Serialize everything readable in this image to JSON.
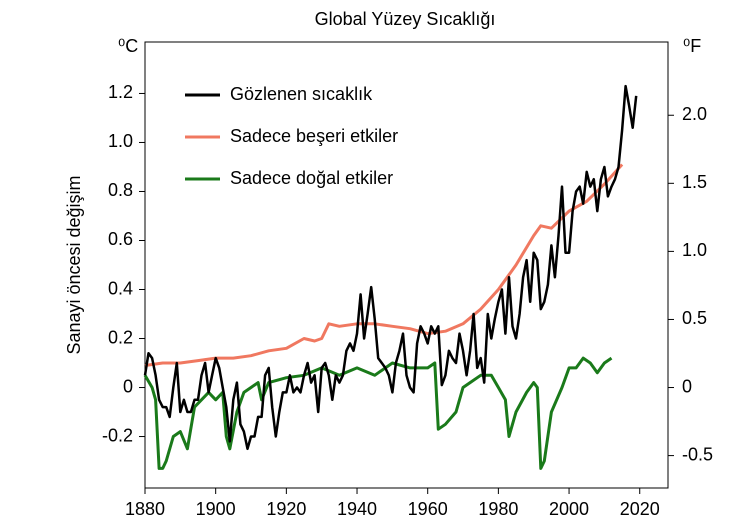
{
  "chart_data": {
    "type": "line",
    "title": "Global Yüzey Sıcaklığı",
    "ylabel": "Sanayi öncesi değişim",
    "y_unit": "⁰C",
    "y2_unit": "⁰F",
    "xlim": [
      1880,
      2028
    ],
    "xticks": [
      1880,
      1900,
      1920,
      1940,
      1960,
      1980,
      2000,
      2020
    ],
    "ylim": [
      -0.41,
      1.41
    ],
    "yticks": [
      -0.2,
      0,
      0.2,
      0.4,
      0.6,
      0.8,
      {
        "value": 1.0,
        "label": "1.0"
      },
      1.2
    ],
    "y2lim": [
      -0.738,
      2.538
    ],
    "y2ticks": [
      -0.5,
      0,
      0.5,
      {
        "value": 1.0,
        "label": "1.0"
      },
      1.5,
      {
        "value": 2.0,
        "label": "2.0"
      }
    ],
    "series": [
      {
        "name": "Gözlenen sıcaklık",
        "color": "#000000",
        "label_color": "#000000",
        "x": [
          1880,
          1881,
          1882,
          1883,
          1884,
          1885,
          1886,
          1887,
          1888,
          1889,
          1890,
          1891,
          1892,
          1893,
          1894,
          1895,
          1896,
          1897,
          1898,
          1899,
          1900,
          1901,
          1902,
          1903,
          1904,
          1905,
          1906,
          1907,
          1908,
          1909,
          1910,
          1911,
          1912,
          1913,
          1914,
          1915,
          1916,
          1917,
          1918,
          1919,
          1920,
          1921,
          1922,
          1923,
          1924,
          1925,
          1926,
          1927,
          1928,
          1929,
          1930,
          1931,
          1932,
          1933,
          1934,
          1935,
          1936,
          1937,
          1938,
          1939,
          1940,
          1941,
          1942,
          1943,
          1944,
          1945,
          1946,
          1947,
          1948,
          1949,
          1950,
          1951,
          1952,
          1953,
          1954,
          1955,
          1956,
          1957,
          1958,
          1959,
          1960,
          1961,
          1962,
          1963,
          1964,
          1965,
          1966,
          1967,
          1968,
          1969,
          1970,
          1971,
          1972,
          1973,
          1974,
          1975,
          1976,
          1977,
          1978,
          1979,
          1980,
          1981,
          1982,
          1983,
          1984,
          1985,
          1986,
          1987,
          1988,
          1989,
          1990,
          1991,
          1992,
          1993,
          1994,
          1995,
          1996,
          1997,
          1998,
          1999,
          2000,
          2001,
          2002,
          2003,
          2004,
          2005,
          2006,
          2007,
          2008,
          2009,
          2010,
          2011,
          2012,
          2013,
          2014,
          2015,
          2016,
          2017,
          2018,
          2019
        ],
        "values": [
          0.05,
          0.14,
          0.12,
          0.05,
          -0.05,
          -0.08,
          -0.08,
          -0.12,
          0.0,
          0.1,
          -0.1,
          -0.05,
          -0.1,
          -0.1,
          -0.05,
          -0.05,
          0.05,
          0.1,
          -0.02,
          0.05,
          0.12,
          0.08,
          0.0,
          -0.08,
          -0.22,
          -0.05,
          0.02,
          -0.15,
          -0.18,
          -0.25,
          -0.2,
          -0.2,
          -0.12,
          -0.12,
          0.05,
          0.08,
          -0.08,
          -0.2,
          -0.1,
          -0.02,
          -0.02,
          0.05,
          -0.02,
          0.0,
          -0.02,
          0.05,
          0.1,
          0.02,
          0.05,
          -0.1,
          0.08,
          0.1,
          0.05,
          -0.05,
          0.05,
          0.02,
          0.05,
          0.15,
          0.18,
          0.15,
          0.22,
          0.38,
          0.2,
          0.3,
          0.41,
          0.28,
          0.12,
          0.1,
          0.08,
          0.05,
          -0.02,
          0.1,
          0.15,
          0.22,
          0.05,
          0.0,
          -0.02,
          0.18,
          0.25,
          0.22,
          0.18,
          0.25,
          0.22,
          0.25,
          0.01,
          0.05,
          0.15,
          0.12,
          0.1,
          0.22,
          0.15,
          0.05,
          0.15,
          0.3,
          0.08,
          0.12,
          0.02,
          0.3,
          0.2,
          0.28,
          0.35,
          0.4,
          0.22,
          0.45,
          0.25,
          0.2,
          0.3,
          0.45,
          0.52,
          0.35,
          0.55,
          0.52,
          0.32,
          0.35,
          0.42,
          0.58,
          0.45,
          0.62,
          0.82,
          0.55,
          0.55,
          0.72,
          0.8,
          0.82,
          0.75,
          0.88,
          0.82,
          0.85,
          0.72,
          0.85,
          0.9,
          0.78,
          0.82,
          0.85,
          0.9,
          1.05,
          1.23,
          1.15,
          1.06,
          1.19
        ]
      },
      {
        "name": "Sadece beşeri etkiler",
        "color": "#f07860",
        "label_color": "#e0302a",
        "x": [
          1880,
          1885,
          1890,
          1895,
          1900,
          1905,
          1910,
          1915,
          1920,
          1925,
          1928,
          1930,
          1932,
          1935,
          1940,
          1945,
          1950,
          1955,
          1960,
          1965,
          1970,
          1975,
          1980,
          1985,
          1990,
          1992,
          1995,
          2000,
          2005,
          2010,
          2015
        ],
        "values": [
          0.09,
          0.1,
          0.1,
          0.11,
          0.12,
          0.12,
          0.13,
          0.15,
          0.16,
          0.2,
          0.19,
          0.2,
          0.26,
          0.25,
          0.26,
          0.26,
          0.25,
          0.24,
          0.22,
          0.23,
          0.26,
          0.32,
          0.4,
          0.5,
          0.62,
          0.66,
          0.65,
          0.72,
          0.76,
          0.83,
          0.91
        ]
      },
      {
        "name": "Sadece doğal etkiler",
        "color": "#1a7a1a",
        "label_color": "#157070",
        "x": [
          1880,
          1882,
          1883,
          1884,
          1885,
          1886,
          1888,
          1890,
          1892,
          1894,
          1896,
          1898,
          1900,
          1902,
          1903,
          1904,
          1906,
          1908,
          1910,
          1912,
          1913,
          1915,
          1920,
          1925,
          1930,
          1935,
          1940,
          1945,
          1950,
          1955,
          1960,
          1962,
          1963,
          1965,
          1968,
          1970,
          1972,
          1975,
          1978,
          1980,
          1982,
          1983,
          1985,
          1988,
          1990,
          1991,
          1992,
          1993,
          1995,
          1998,
          2000,
          2002,
          2004,
          2006,
          2008,
          2010,
          2012
        ],
        "values": [
          0.05,
          0.0,
          -0.05,
          -0.33,
          -0.33,
          -0.3,
          -0.2,
          -0.18,
          -0.25,
          -0.08,
          -0.05,
          -0.02,
          -0.05,
          -0.02,
          -0.2,
          -0.25,
          -0.1,
          -0.02,
          0.0,
          0.02,
          -0.05,
          0.02,
          0.04,
          0.05,
          0.08,
          0.05,
          0.08,
          0.05,
          0.1,
          0.08,
          0.08,
          0.1,
          -0.17,
          -0.15,
          -0.1,
          0.0,
          0.02,
          0.05,
          0.05,
          0.0,
          -0.05,
          -0.2,
          -0.1,
          -0.02,
          0.02,
          0.0,
          -0.33,
          -0.3,
          -0.1,
          0.0,
          0.08,
          0.08,
          0.12,
          0.1,
          0.06,
          0.1,
          0.12
        ]
      }
    ]
  }
}
